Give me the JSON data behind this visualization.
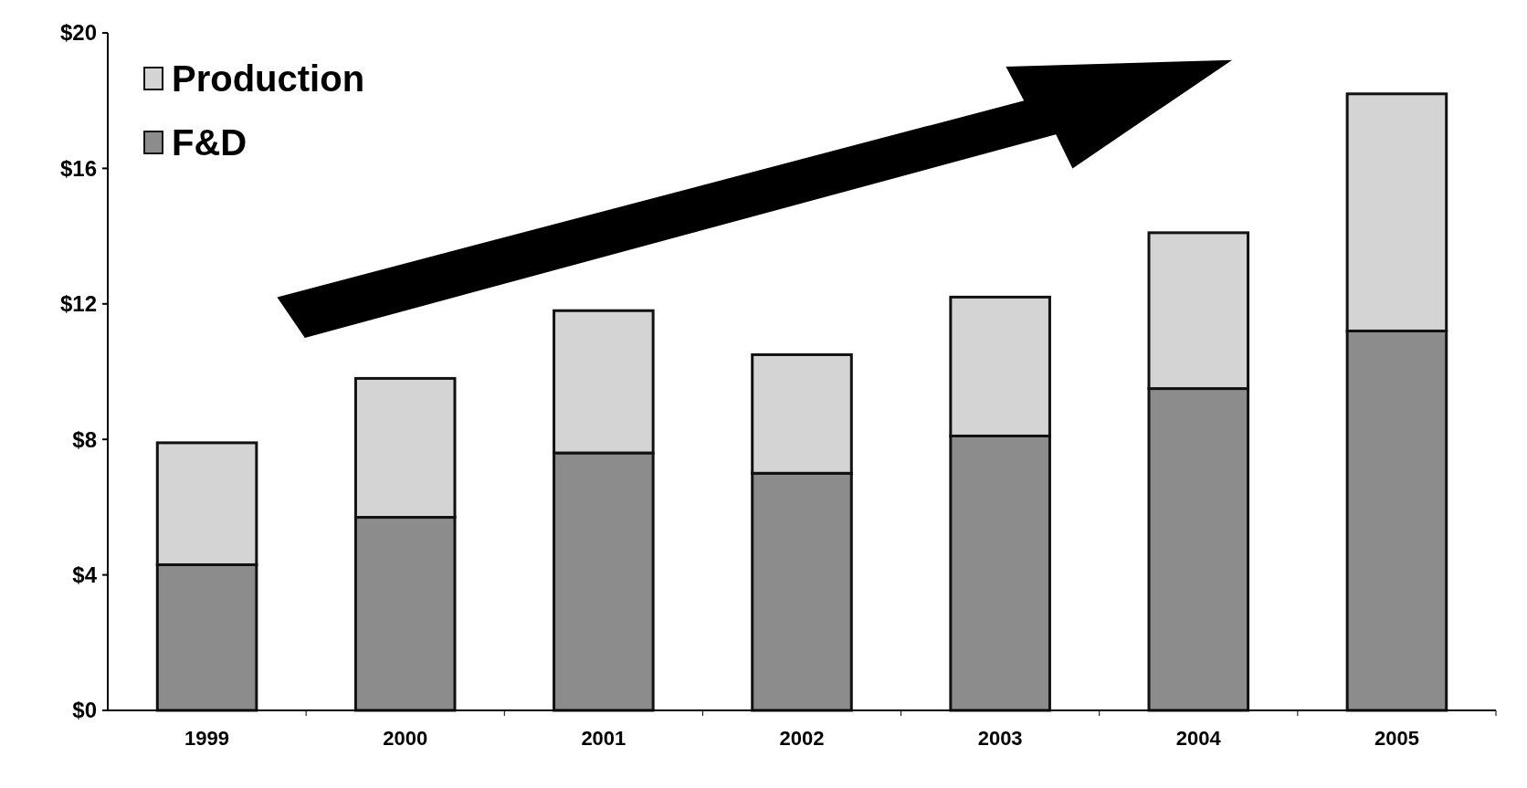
{
  "chart_data": {
    "type": "bar",
    "stacked": true,
    "categories": [
      "1999",
      "2000",
      "2001",
      "2002",
      "2003",
      "2004",
      "2005"
    ],
    "series": [
      {
        "name": "F&D",
        "color": "#8c8c8c",
        "values": [
          4.3,
          5.7,
          7.6,
          7.0,
          8.1,
          9.5,
          11.2
        ]
      },
      {
        "name": "Production",
        "color": "#d4d4d4",
        "values": [
          3.6,
          4.1,
          4.2,
          3.5,
          4.1,
          4.6,
          7.0
        ]
      }
    ],
    "ylim": [
      0,
      20
    ],
    "yticks": [
      {
        "value": 0,
        "label": "$0"
      },
      {
        "value": 4,
        "label": "$4"
      },
      {
        "value": 8,
        "label": "$8"
      },
      {
        "value": 12,
        "label": "$12"
      },
      {
        "value": 16,
        "label": "$16"
      },
      {
        "value": 20,
        "label": "$20"
      }
    ],
    "grid": false,
    "legend": "top left"
  }
}
